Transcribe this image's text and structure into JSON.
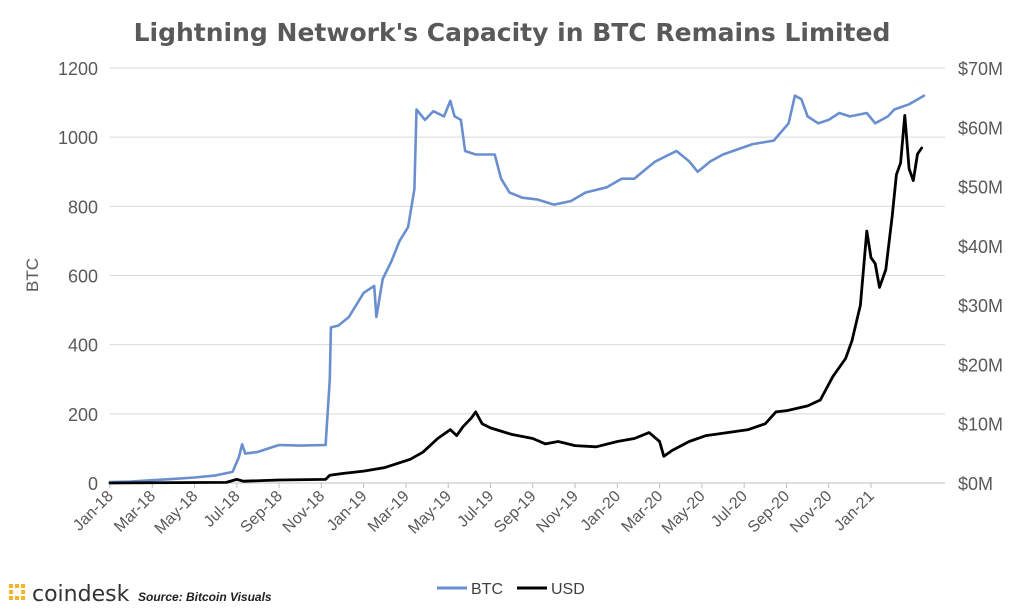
{
  "chart_data": {
    "type": "line",
    "title": "Lightning Network's Capacity in BTC Remains Limited",
    "ylabel": "BTC",
    "ylim": [
      0,
      1200
    ],
    "y2lim": [
      0,
      70
    ],
    "yticks": [
      "0",
      "200",
      "400",
      "600",
      "800",
      "1000",
      "1200"
    ],
    "y2ticks": [
      "$0M",
      "$10M",
      "$20M",
      "$30M",
      "$40M",
      "$50M",
      "$60M",
      "$70M"
    ],
    "x_tick_labels": [
      "Jan-18",
      "Mar-18",
      "May-18",
      "Jul-18",
      "Sep-18",
      "Nov-18",
      "Jan-19",
      "Mar-19",
      "May-19",
      "Jul-19",
      "Sep-19",
      "Nov-19",
      "Jan-20",
      "Mar-20",
      "May-20",
      "Jul-20",
      "Sep-20",
      "Nov-20",
      "Jan-21"
    ],
    "x_unit": "months since Jan-18",
    "legend_position": "bottom",
    "series": [
      {
        "name": "BTC",
        "axis": "left",
        "color": "#6a8fcf",
        "points": [
          [
            0,
            3
          ],
          [
            1,
            4
          ],
          [
            2,
            8
          ],
          [
            3,
            12
          ],
          [
            4,
            16
          ],
          [
            5,
            22
          ],
          [
            5.8,
            32
          ],
          [
            6.1,
            75
          ],
          [
            6.25,
            112
          ],
          [
            6.4,
            85
          ],
          [
            7,
            90
          ],
          [
            7.5,
            100
          ],
          [
            8,
            110
          ],
          [
            9,
            108
          ],
          [
            10.2,
            110
          ],
          [
            10.4,
            300
          ],
          [
            10.45,
            450
          ],
          [
            10.8,
            455
          ],
          [
            11.3,
            480
          ],
          [
            12,
            550
          ],
          [
            12.5,
            570
          ],
          [
            12.6,
            480
          ],
          [
            12.9,
            590
          ],
          [
            13.3,
            640
          ],
          [
            13.7,
            700
          ],
          [
            14.1,
            740
          ],
          [
            14.4,
            850
          ],
          [
            14.5,
            1080
          ],
          [
            14.9,
            1050
          ],
          [
            15.3,
            1075
          ],
          [
            15.8,
            1060
          ],
          [
            16.1,
            1105
          ],
          [
            16.3,
            1060
          ],
          [
            16.6,
            1050
          ],
          [
            16.8,
            960
          ],
          [
            17.3,
            950
          ],
          [
            18.2,
            950
          ],
          [
            18.5,
            880
          ],
          [
            18.9,
            840
          ],
          [
            19.5,
            825
          ],
          [
            20.2,
            820
          ],
          [
            21,
            805
          ],
          [
            21.8,
            815
          ],
          [
            22.5,
            840
          ],
          [
            23.5,
            855
          ],
          [
            24.2,
            880
          ],
          [
            24.8,
            880
          ],
          [
            25.3,
            905
          ],
          [
            25.8,
            930
          ],
          [
            26.8,
            960
          ],
          [
            27.4,
            930
          ],
          [
            27.8,
            900
          ],
          [
            28.4,
            930
          ],
          [
            29,
            950
          ],
          [
            30.4,
            980
          ],
          [
            31.4,
            990
          ],
          [
            32.1,
            1040
          ],
          [
            32.4,
            1120
          ],
          [
            32.7,
            1110
          ],
          [
            33,
            1060
          ],
          [
            33.5,
            1040
          ],
          [
            34,
            1050
          ],
          [
            34.5,
            1070
          ],
          [
            35,
            1060
          ],
          [
            35.8,
            1070
          ],
          [
            36.2,
            1040
          ],
          [
            36.8,
            1060
          ],
          [
            37.1,
            1080
          ],
          [
            37.8,
            1095
          ],
          [
            38.5,
            1120
          ]
        ]
      },
      {
        "name": "USD",
        "axis": "right",
        "color": "#000000",
        "points": [
          [
            0,
            0
          ],
          [
            5.5,
            0.1
          ],
          [
            6,
            0.6
          ],
          [
            6.3,
            0.3
          ],
          [
            8,
            0.5
          ],
          [
            10.2,
            0.6
          ],
          [
            10.4,
            1.3
          ],
          [
            11,
            1.6
          ],
          [
            12,
            2.0
          ],
          [
            13,
            2.6
          ],
          [
            14.2,
            4.0
          ],
          [
            14.8,
            5.2
          ],
          [
            15.5,
            7.5
          ],
          [
            16.1,
            9.0
          ],
          [
            16.4,
            8.0
          ],
          [
            16.7,
            9.5
          ],
          [
            17.1,
            11.0
          ],
          [
            17.3,
            12.0
          ],
          [
            17.6,
            10.0
          ],
          [
            18,
            9.3
          ],
          [
            19,
            8.2
          ],
          [
            20,
            7.5
          ],
          [
            20.6,
            6.6
          ],
          [
            21.2,
            7.0
          ],
          [
            22,
            6.3
          ],
          [
            23,
            6.1
          ],
          [
            24,
            7.0
          ],
          [
            24.8,
            7.5
          ],
          [
            25.5,
            8.5
          ],
          [
            26,
            7.0
          ],
          [
            26.2,
            4.5
          ],
          [
            26.6,
            5.5
          ],
          [
            27.4,
            7.0
          ],
          [
            28.2,
            8.0
          ],
          [
            29.2,
            8.5
          ],
          [
            30.2,
            9.0
          ],
          [
            31,
            10.0
          ],
          [
            31.5,
            12.0
          ],
          [
            32,
            12.2
          ],
          [
            33,
            13.0
          ],
          [
            33.6,
            14.0
          ],
          [
            34.2,
            18.0
          ],
          [
            34.8,
            21.0
          ],
          [
            35.1,
            24.0
          ],
          [
            35.5,
            30.0
          ],
          [
            35.8,
            42.5
          ],
          [
            36.0,
            38.0
          ],
          [
            36.2,
            37.0
          ],
          [
            36.4,
            33.0
          ],
          [
            36.7,
            36.0
          ],
          [
            37.0,
            45.0
          ],
          [
            37.2,
            52.0
          ],
          [
            37.4,
            54.0
          ],
          [
            37.6,
            62.0
          ],
          [
            37.8,
            53.0
          ],
          [
            38.0,
            51.0
          ],
          [
            38.2,
            55.5
          ],
          [
            38.4,
            56.5
          ]
        ]
      }
    ]
  },
  "footer": {
    "brand_name": "coindesk",
    "source": "Source: Bitcoin Visuals"
  }
}
